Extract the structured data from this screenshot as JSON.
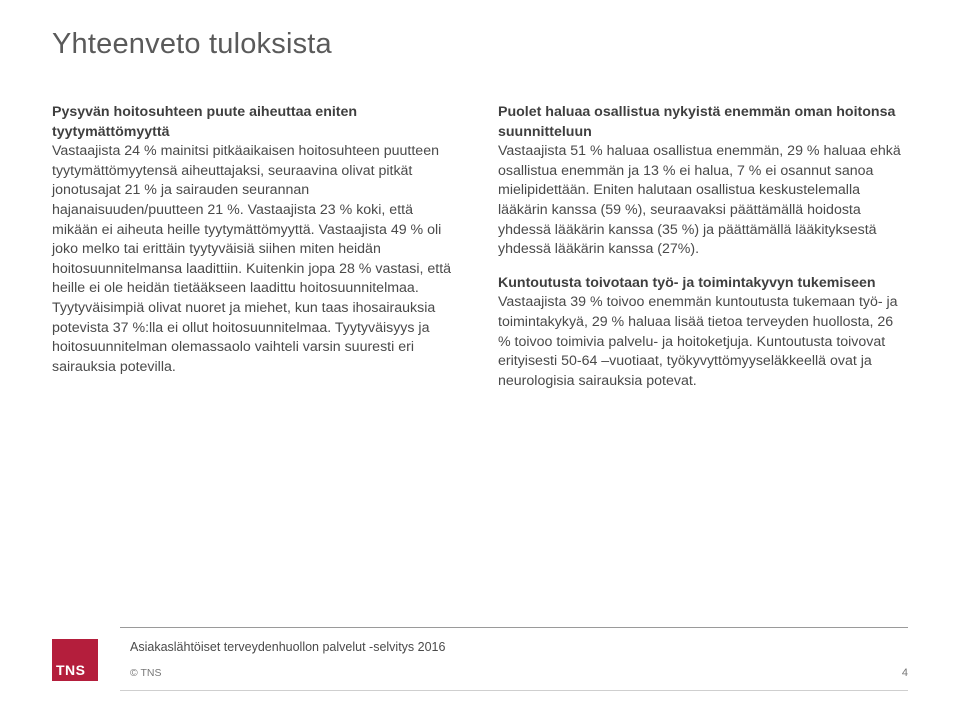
{
  "title": "Yhteenveto tuloksista",
  "left": {
    "heading": "Pysyvän hoitosuhteen puute aiheuttaa eniten tyytymättömyyttä",
    "body": "Vastaajista 24 % mainitsi pitkäaikaisen hoitosuhteen puutteen tyytymättömyytensä aiheuttajaksi, seuraavina olivat pitkät jonotusajat 21 % ja sairauden seurannan hajanaisuuden/puutteen 21 %. Vastaajista 23 % koki, että mikään ei aiheuta heille tyytymättömyyttä. Vastaajista 49 % oli joko melko tai erittäin tyytyväisiä siihen miten heidän hoitosuunnitelmansa laadittiin. Kuitenkin jopa 28 % vastasi, että heille ei ole heidän tietääkseen laadittu hoitosuunnitelmaa. Tyytyväisimpiä olivat nuoret ja miehet, kun taas ihosairauksia potevista 37 %:lla ei ollut hoitosuunnitelmaa. Tyytyväisyys ja hoitosuunnitelman olemassaolo vaihteli varsin suuresti eri sairauksia potevilla."
  },
  "right": {
    "heading1": "Puolet haluaa osallistua nykyistä enemmän oman hoitonsa suunnitteluun",
    "body1": "Vastaajista 51 % haluaa osallistua enemmän, 29 % haluaa ehkä osallistua enemmän ja 13 % ei halua, 7 % ei osannut sanoa mielipidettään. Eniten halutaan osallistua keskustelemalla lääkärin kanssa (59 %), seuraavaksi päättämällä hoidosta yhdessä lääkärin kanssa (35 %) ja päättämällä lääkityksestä yhdessä lääkärin kanssa (27%).",
    "heading2": "Kuntoutusta toivotaan työ- ja toimintakyvyn tukemiseen",
    "body2": "Vastaajista 39 % toivoo enemmän kuntoutusta tukemaan työ- ja toimintakykyä, 29 % haluaa lisää tietoa terveyden huollosta, 26 % toivoo toimivia palvelu- ja hoitoketjuja. Kuntoutusta toivovat erityisesti 50-64 –vuotiaat, työkyvyttömyyseläkkeellä ovat ja neurologisia sairauksia potevat."
  },
  "footer": {
    "logo": "TNS",
    "survey": "Asiakaslähtöiset terveydenhuollon palvelut -selvitys 2016",
    "copyright": "© TNS",
    "page": "4"
  },
  "colors": {
    "text": "#4a4a4a",
    "heading": "#3f3f3f",
    "logo_bg": "#b41e3c",
    "logo_text": "#ffffff",
    "rule": "#9a9a9a",
    "background": "#ffffff"
  }
}
